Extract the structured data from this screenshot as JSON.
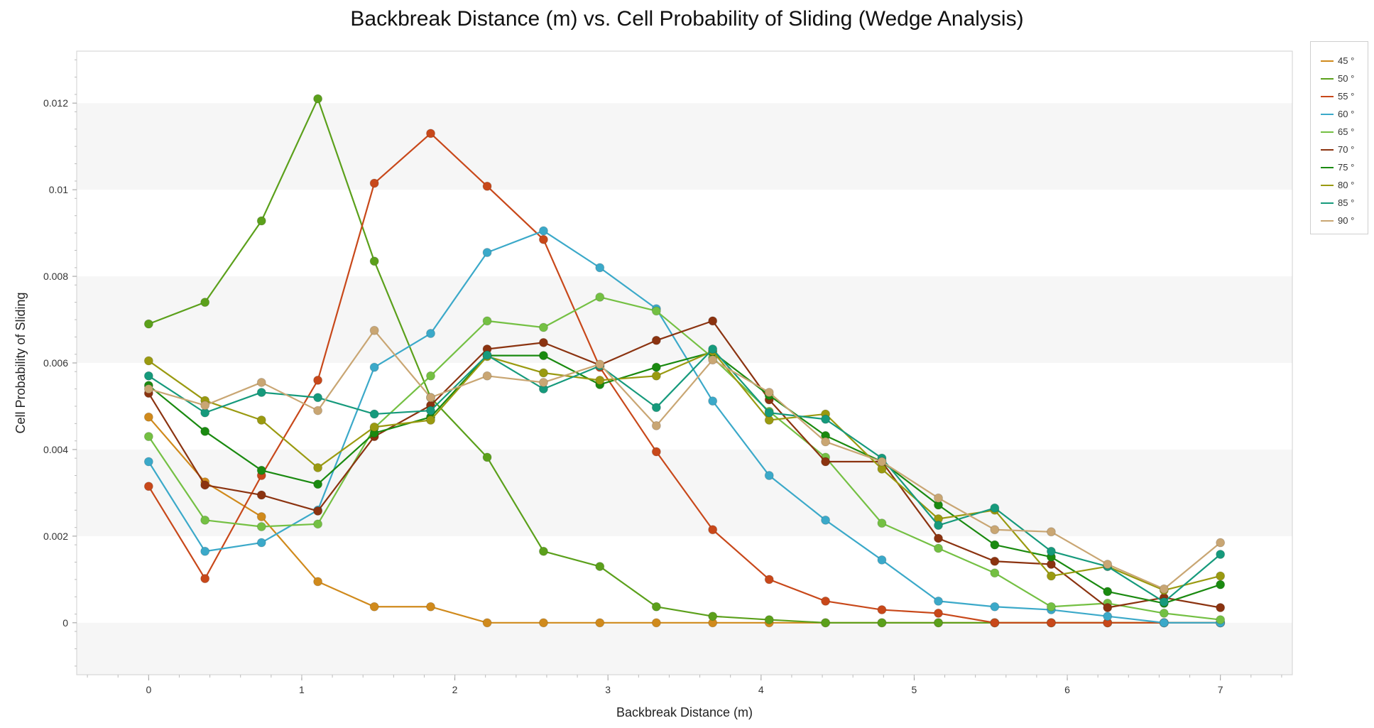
{
  "chart_data": {
    "type": "line",
    "title": "Backbreak Distance (m) vs. Cell Probability of Sliding (Wedge Analysis)",
    "xlabel": "Backbreak Distance (m)",
    "ylabel": "Cell Probability of Sliding",
    "xlim": [
      -0.47,
      7.47
    ],
    "ylim": [
      -0.0012,
      0.0132
    ],
    "xticks": [
      "0",
      "1",
      "2",
      "3",
      "4",
      "5",
      "6",
      "7"
    ],
    "yticks": [
      "0",
      "0.002",
      "0.004",
      "0.006",
      "0.008",
      "0.01",
      "0.012"
    ],
    "x": [
      0,
      0.368,
      0.737,
      1.105,
      1.474,
      1.842,
      2.211,
      2.579,
      2.947,
      3.316,
      3.684,
      4.053,
      4.421,
      4.789,
      5.158,
      5.526,
      5.895,
      6.263,
      6.632,
      7.0
    ],
    "grid": "alternating horizontal bands",
    "legend_position": "right",
    "series": [
      {
        "name": "45 °",
        "color": "#d08a1c",
        "values": [
          0.00475,
          0.00325,
          0.00245,
          0.00095,
          0.00037,
          0.00037,
          0,
          0,
          0,
          0,
          0,
          0,
          0,
          0,
          0,
          0,
          0,
          0,
          0,
          0
        ]
      },
      {
        "name": "50 °",
        "color": "#5ba01b",
        "values": [
          0.0069,
          0.0074,
          0.00928,
          0.0121,
          0.00835,
          0.0052,
          0.00382,
          0.00165,
          0.0013,
          0.00037,
          0.00015,
          7e-05,
          0,
          0,
          0,
          0,
          0,
          0,
          0,
          0
        ]
      },
      {
        "name": "55 °",
        "color": "#c8481a",
        "values": [
          0.00315,
          0.00102,
          0.0034,
          0.0056,
          0.01015,
          0.0113,
          0.01008,
          0.00885,
          0.0059,
          0.00395,
          0.00215,
          0.001,
          0.0005,
          0.0003,
          0.00022,
          0,
          0,
          0,
          0,
          0
        ]
      },
      {
        "name": "60 °",
        "color": "#3ba9c9",
        "values": [
          0.00372,
          0.00165,
          0.00185,
          0.0026,
          0.0059,
          0.00668,
          0.00855,
          0.00905,
          0.0082,
          0.00725,
          0.00512,
          0.0034,
          0.00237,
          0.00145,
          0.0005,
          0.00037,
          0.0003,
          0.00015,
          0,
          0
        ]
      },
      {
        "name": "65 °",
        "color": "#74c043",
        "values": [
          0.0043,
          0.00237,
          0.00222,
          0.00228,
          0.0045,
          0.0057,
          0.00697,
          0.00682,
          0.00752,
          0.0072,
          0.00612,
          0.00488,
          0.00382,
          0.0023,
          0.00172,
          0.00115,
          0.00037,
          0.00045,
          0.00022,
          7e-05
        ]
      },
      {
        "name": "70 °",
        "color": "#8b3310",
        "values": [
          0.0053,
          0.00318,
          0.00295,
          0.00258,
          0.0043,
          0.00502,
          0.00632,
          0.00647,
          0.00595,
          0.00652,
          0.00697,
          0.00515,
          0.00372,
          0.00372,
          0.00195,
          0.00142,
          0.00135,
          0.00035,
          0.00058,
          0.00035
        ]
      },
      {
        "name": "75 °",
        "color": "#1a8a10",
        "values": [
          0.00548,
          0.00442,
          0.00352,
          0.0032,
          0.00438,
          0.00475,
          0.00617,
          0.00617,
          0.0055,
          0.0059,
          0.00625,
          0.00525,
          0.00432,
          0.00372,
          0.00272,
          0.0018,
          0.00152,
          0.00072,
          0.00045,
          0.00088
        ]
      },
      {
        "name": "80 °",
        "color": "#9a9a10",
        "values": [
          0.00605,
          0.00513,
          0.00468,
          0.00358,
          0.00452,
          0.00468,
          0.00615,
          0.00577,
          0.0056,
          0.0057,
          0.00627,
          0.00468,
          0.00482,
          0.00355,
          0.0024,
          0.0026,
          0.00108,
          0.0013,
          0.00075,
          0.00108
        ]
      },
      {
        "name": "85 °",
        "color": "#169a7c",
        "values": [
          0.0057,
          0.00485,
          0.00532,
          0.0052,
          0.00482,
          0.0049,
          0.00618,
          0.0054,
          0.00593,
          0.00497,
          0.00632,
          0.00485,
          0.0047,
          0.0038,
          0.00225,
          0.00265,
          0.00165,
          0.0013,
          0.00048,
          0.00158
        ]
      },
      {
        "name": "90 °",
        "color": "#c9a673",
        "values": [
          0.0054,
          0.00502,
          0.00555,
          0.0049,
          0.00675,
          0.0052,
          0.0057,
          0.00555,
          0.00597,
          0.00455,
          0.00607,
          0.00532,
          0.00418,
          0.00372,
          0.00288,
          0.00215,
          0.0021,
          0.00135,
          0.00078,
          0.00185
        ]
      }
    ]
  }
}
